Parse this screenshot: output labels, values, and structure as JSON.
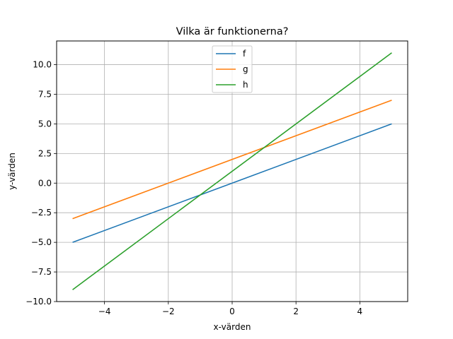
{
  "chart_data": {
    "type": "line",
    "title": "Vilka är funktionerna?",
    "xlabel": "x-värden",
    "ylabel": "y-värden",
    "xlim": [
      -5.5,
      5.5
    ],
    "ylim": [
      -10,
      12
    ],
    "xticks": [
      -4,
      -2,
      0,
      2,
      4
    ],
    "xtick_labels": [
      "−4",
      "−2",
      "0",
      "2",
      "4"
    ],
    "yticks": [
      -10,
      -7.5,
      -5,
      -2.5,
      0,
      2.5,
      5,
      7.5,
      10
    ],
    "ytick_labels": [
      "−10.0",
      "−7.5",
      "−5.0",
      "−2.5",
      "0.0",
      "2.5",
      "5.0",
      "7.5",
      "10.0"
    ],
    "grid": true,
    "legend_position": "top-center",
    "series": [
      {
        "name": "f",
        "color": "#1f77b4",
        "x": [
          -5,
          5
        ],
        "y": [
          -5,
          5
        ]
      },
      {
        "name": "g",
        "color": "#ff7f0e",
        "x": [
          -5,
          5
        ],
        "y": [
          -3,
          7
        ]
      },
      {
        "name": "h",
        "color": "#2ca02c",
        "x": [
          -5,
          5
        ],
        "y": [
          -9,
          11
        ]
      }
    ]
  }
}
